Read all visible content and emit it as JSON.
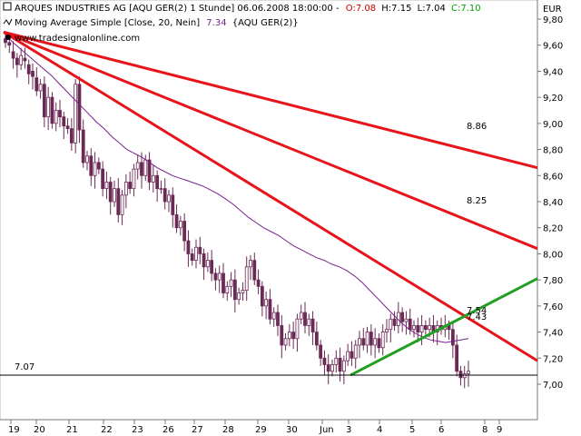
{
  "header": {
    "instrument": "ARQUES INDUSTRIES AG [AQU GER(2)  1 Stunde] 06.06.2008 18:00:00 -",
    "open_label": "O:7.08",
    "high_label": "H:7.15",
    "low_label": "L:7.04",
    "close_label": "C:7.10",
    "indicator_name": "Moving Average Simple [Close, 20, Nein]",
    "indicator_value": "7.34",
    "indicator_source": "{AQU GER(2)}",
    "watermark": "www.tradesignalonline.com"
  },
  "colors": {
    "open": "#cc0000",
    "close": "#00a000",
    "ma": "#7a1f8f",
    "candle": "#6b2a55",
    "trend_down": "#e8141b",
    "trend_up": "#20a020",
    "support": "#000000",
    "indicator_value": "#7a1f8f"
  },
  "chart_data": {
    "type": "candlestick",
    "currency": "EUR",
    "ylim": [
      6.8,
      9.86
    ],
    "y_ticks": [
      "9,80",
      "9,60",
      "9,40",
      "9,20",
      "9,00",
      "8,80",
      "8,60",
      "8,40",
      "8,20",
      "8,00",
      "7,80",
      "7,60",
      "7,40",
      "7,20",
      "7,00"
    ],
    "x_ticks": [
      "19",
      "20",
      "21",
      "22",
      "23",
      "26",
      "27",
      "28",
      "29",
      "30",
      "Jun",
      "3",
      "4",
      "5",
      "6",
      "8",
      "9"
    ],
    "close": [
      9.62,
      9.6,
      9.5,
      9.45,
      9.52,
      9.48,
      9.38,
      9.36,
      9.25,
      9.3,
      9.05,
      9.2,
      9.0,
      9.1,
      9.05,
      8.98,
      8.96,
      8.85,
      9.3,
      8.95,
      8.7,
      8.75,
      8.6,
      8.7,
      8.65,
      8.5,
      8.55,
      8.4,
      8.5,
      8.3,
      8.45,
      8.55,
      8.5,
      8.65,
      8.7,
      8.6,
      8.72,
      8.55,
      8.6,
      8.5,
      8.5,
      8.4,
      8.45,
      8.3,
      8.2,
      8.25,
      8.1,
      8.0,
      7.95,
      8.05,
      8.0,
      7.9,
      7.95,
      7.85,
      7.8,
      7.85,
      7.7,
      7.75,
      7.8,
      7.65,
      7.7,
      7.72,
      7.9,
      7.95,
      7.8,
      7.75,
      7.6,
      7.65,
      7.5,
      7.55,
      7.45,
      7.3,
      7.35,
      7.4,
      7.35,
      7.5,
      7.55,
      7.45,
      7.5,
      7.4,
      7.3,
      7.2,
      7.15,
      7.1,
      7.15,
      7.2,
      7.1,
      7.18,
      7.25,
      7.2,
      7.3,
      7.35,
      7.3,
      7.4,
      7.3,
      7.35,
      7.28,
      7.4,
      7.42,
      7.5,
      7.45,
      7.55,
      7.48,
      7.5,
      7.42,
      7.45,
      7.4,
      7.45,
      7.42,
      7.45,
      7.4,
      7.45,
      7.42,
      7.45,
      7.42,
      7.3,
      7.1,
      7.05,
      7.08,
      7.1
    ],
    "open": [
      9.65,
      9.62,
      9.55,
      9.5,
      9.45,
      9.5,
      9.45,
      9.4,
      9.35,
      9.25,
      9.3,
      9.05,
      9.2,
      9.0,
      9.1,
      9.05,
      8.98,
      8.96,
      8.85,
      9.3,
      8.95,
      8.7,
      8.75,
      8.6,
      8.7,
      8.65,
      8.5,
      8.55,
      8.4,
      8.5,
      8.3,
      8.45,
      8.55,
      8.5,
      8.65,
      8.7,
      8.6,
      8.72,
      8.55,
      8.6,
      8.5,
      8.5,
      8.4,
      8.45,
      8.3,
      8.2,
      8.25,
      8.1,
      8.0,
      7.95,
      8.05,
      8.0,
      7.9,
      7.95,
      7.85,
      7.8,
      7.85,
      7.7,
      7.75,
      7.8,
      7.65,
      7.7,
      7.72,
      7.9,
      7.95,
      7.8,
      7.75,
      7.6,
      7.65,
      7.5,
      7.55,
      7.45,
      7.3,
      7.35,
      7.4,
      7.35,
      7.5,
      7.55,
      7.45,
      7.5,
      7.4,
      7.3,
      7.2,
      7.15,
      7.1,
      7.15,
      7.2,
      7.1,
      7.18,
      7.25,
      7.2,
      7.3,
      7.35,
      7.3,
      7.4,
      7.3,
      7.35,
      7.28,
      7.4,
      7.42,
      7.5,
      7.45,
      7.55,
      7.48,
      7.5,
      7.42,
      7.45,
      7.4,
      7.45,
      7.42,
      7.45,
      7.4,
      7.45,
      7.42,
      7.45,
      7.42,
      7.3,
      7.1,
      7.05,
      7.08
    ],
    "ma20": [
      9.68,
      9.62,
      9.57,
      9.52,
      9.47,
      9.42,
      9.37,
      9.31,
      9.25,
      9.19,
      9.13,
      9.07,
      9.01,
      8.96,
      8.9,
      8.85,
      8.8,
      8.77,
      8.74,
      8.7,
      8.66,
      8.63,
      8.6,
      8.58,
      8.56,
      8.54,
      8.52,
      8.49,
      8.46,
      8.42,
      8.38,
      8.33,
      8.28,
      8.24,
      8.2,
      8.17,
      8.14,
      8.1,
      8.06,
      8.03,
      8.0,
      7.97,
      7.95,
      7.92,
      7.9,
      7.87,
      7.83,
      7.78,
      7.72,
      7.66,
      7.6,
      7.54,
      7.48,
      7.43,
      7.39,
      7.36,
      7.34,
      7.33,
      7.32,
      7.33,
      7.34,
      7.35
    ],
    "annotations": {
      "trend_labels": [
        "8.86",
        "8.25",
        "7.54",
        "7.43"
      ],
      "support_label": "7.07",
      "support_value": 7.07
    },
    "trendlines": [
      {
        "name": "upper",
        "from": [
          0,
          9.7
        ],
        "to": [
          1,
          8.66
        ],
        "label": "8.86"
      },
      {
        "name": "middle",
        "from": [
          0,
          9.7
        ],
        "to": [
          1,
          8.04
        ],
        "label": "8.25"
      },
      {
        "name": "lower",
        "from": [
          0,
          9.7
        ],
        "to": [
          1,
          7.18
        ],
        "label": "7.43"
      },
      {
        "name": "rising",
        "from": [
          0.65,
          7.07
        ],
        "to": [
          1,
          7.81
        ],
        "label": "7.54"
      }
    ]
  }
}
